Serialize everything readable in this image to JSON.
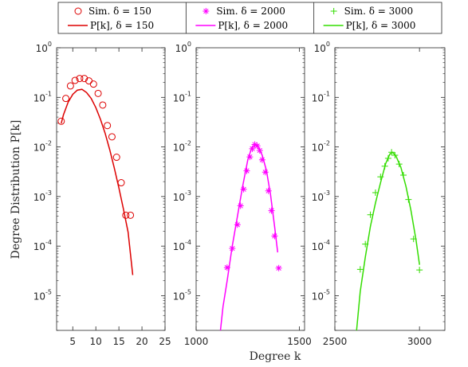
{
  "chart_data": {
    "type": "line",
    "ylabel": "Degree Distribution P[k]",
    "xlabel": "Degree k",
    "yscale": "log",
    "ylim": [
      2e-06,
      1
    ],
    "yticks": [
      1,
      0.1,
      0.01,
      0.001,
      0.0001,
      1e-05
    ],
    "ytick_labels": [
      {
        "base": "10",
        "exp": "0"
      },
      {
        "base": "10",
        "exp": "-1"
      },
      {
        "base": "10",
        "exp": "-2"
      },
      {
        "base": "10",
        "exp": "-3"
      },
      {
        "base": "10",
        "exp": "-4"
      },
      {
        "base": "10",
        "exp": "-5"
      }
    ],
    "legend_position": "top",
    "panels": [
      {
        "color": "#dd0000",
        "marker": "circle",
        "xlim": [
          1.5,
          25
        ],
        "xticks": [
          5,
          10,
          15,
          20,
          25
        ],
        "xtick_labels": [
          "5",
          "10",
          "15",
          "20",
          "25"
        ],
        "sim_name": "Sim. δ = 150",
        "theory_name": "P[k], δ = 150",
        "sim_x": [
          2.5,
          3.5,
          4.5,
          5.5,
          6.5,
          7.5,
          8.5,
          9.5,
          10.5,
          11.5,
          12.5,
          13.5,
          14.5,
          15.5,
          16.5,
          17.5
        ],
        "sim_y": [
          0.033,
          0.095,
          0.17,
          0.22,
          0.24,
          0.24,
          0.215,
          0.185,
          0.12,
          0.07,
          0.027,
          0.016,
          0.0062,
          0.0019,
          0.00042,
          0.00042
        ],
        "theory_x": [
          2.5,
          3,
          3.5,
          4,
          5,
          6,
          7,
          8,
          9,
          10,
          11,
          12,
          13,
          14,
          15,
          16,
          17,
          18
        ],
        "theory_y": [
          0.03,
          0.045,
          0.06,
          0.08,
          0.115,
          0.14,
          0.145,
          0.125,
          0.095,
          0.062,
          0.036,
          0.019,
          0.0088,
          0.0038,
          0.0015,
          0.00055,
          0.00019,
          2.61e-05
        ]
      },
      {
        "color": "#ff00ff",
        "marker": "star",
        "xlim": [
          1000,
          1525
        ],
        "xticks": [
          1000,
          1500
        ],
        "xtick_labels": [
          "1000",
          "1500"
        ],
        "sim_name": "Sim. δ = 2000",
        "theory_name": "P[k], δ = 2000",
        "sim_x": [
          1150,
          1175,
          1200,
          1215,
          1230,
          1245,
          1260,
          1272,
          1284,
          1296,
          1308,
          1320,
          1335,
          1350,
          1365,
          1380,
          1400
        ],
        "sim_y": [
          3.7e-05,
          9e-05,
          0.00027,
          0.00065,
          0.0014,
          0.0033,
          0.0063,
          0.0092,
          0.0112,
          0.0105,
          0.0085,
          0.0055,
          0.0031,
          0.0013,
          0.00052,
          0.00016,
          3.6e-05
        ],
        "theory_x": [
          1110,
          1130,
          1150,
          1175,
          1200,
          1225,
          1250,
          1270,
          1285,
          1300,
          1320,
          1340,
          1360,
          1380,
          1395
        ],
        "theory_y": [
          1e-06,
          6e-06,
          2e-05,
          0.0001,
          0.0004,
          0.0016,
          0.0055,
          0.0098,
          0.0113,
          0.0102,
          0.0068,
          0.0034,
          0.0011,
          0.00025,
          7.5e-05
        ]
      },
      {
        "color": "#33dd00",
        "marker": "plus",
        "xlim": [
          2500,
          3150
        ],
        "xticks": [
          2500,
          3000
        ],
        "xtick_labels": [
          "2500",
          "3000"
        ],
        "sim_name": "Sim. δ = 3000",
        "theory_name": "P[k], δ = 3000",
        "sim_x": [
          2650,
          2680,
          2710,
          2740,
          2770,
          2795,
          2815,
          2835,
          2855,
          2880,
          2905,
          2935,
          2965,
          3000
        ],
        "sim_y": [
          3.4e-05,
          0.00011,
          0.00043,
          0.0012,
          0.0025,
          0.0041,
          0.0059,
          0.0078,
          0.0068,
          0.0045,
          0.0027,
          0.00087,
          0.00014,
          3.3e-05
        ],
        "theory_x": [
          2620,
          2650,
          2680,
          2710,
          2740,
          2770,
          2800,
          2825,
          2840,
          2860,
          2890,
          2920,
          2950,
          2980,
          3000
        ],
        "theory_y": [
          1e-06,
          1.2e-05,
          6e-05,
          0.00025,
          0.00075,
          0.0019,
          0.0046,
          0.0072,
          0.0078,
          0.0067,
          0.0039,
          0.0016,
          0.00052,
          0.00013,
          4.2e-05
        ]
      }
    ]
  }
}
